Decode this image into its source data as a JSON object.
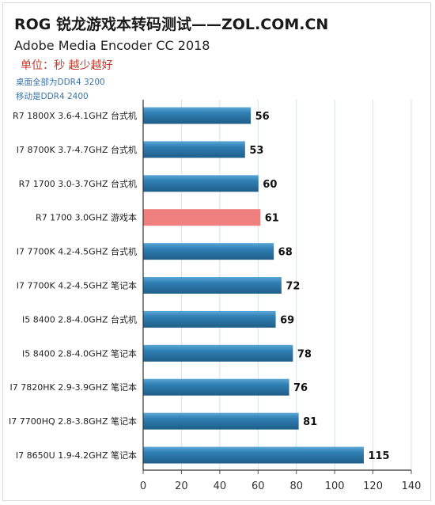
{
  "header": {
    "title": "ROG 锐龙游戏本转码测试——ZOL.COM.CN",
    "subtitle": "Adobe Media Encoder CC 2018",
    "unit_note": "单位：秒 越少越好",
    "note_desktop": "桌面全部为DDR4 3200",
    "note_mobile": "移动是DDR4 2400"
  },
  "chart_data": {
    "type": "bar",
    "orientation": "horizontal",
    "categories": [
      "R7  1800X  3.6-4.1GHZ 台式机",
      "I7 8700K  3.7-4.7GHZ 台式机",
      "R7  1700  3.0-3.7GHZ 台式机",
      "R7  1700  3.0GHZ 游戏本",
      "I7 7700K  4.2-4.5GHZ 台式机",
      "I7 7700K  4.2-4.5GHZ 笔记本",
      "I5 8400  2.8-4.0GHZ 台式机",
      "I5 8400  2.8-4.0GHZ 笔记本",
      "I7 7820HK  2.9-3.9GHZ 笔记本",
      "I7 7700HQ  2.8-3.8GHZ 笔记本",
      "I7 8650U  1.9-4.2GHZ 笔记本"
    ],
    "values": [
      56,
      53,
      60,
      61,
      68,
      72,
      69,
      78,
      76,
      81,
      115
    ],
    "highlight_index": 3,
    "xlim": [
      0,
      140
    ],
    "xticks": [
      0,
      20,
      40,
      60,
      80,
      100,
      120,
      140
    ],
    "grid": true,
    "colors": {
      "bar": "#2f7fb4",
      "bar_dark": "#1f5d88",
      "bar_light": "#5aa7d6",
      "highlight": "#f08080",
      "grid": "#cfe3ea"
    }
  }
}
